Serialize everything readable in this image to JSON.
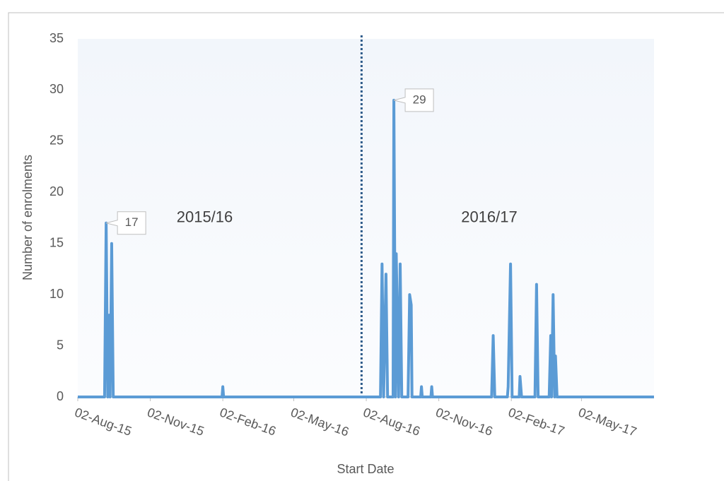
{
  "chart_data": {
    "type": "line",
    "x_label": "Start Date",
    "y_label": "Number of enrolments",
    "x": [
      "2015-08-02",
      "2015-09-05",
      "2015-09-07",
      "2015-09-09",
      "2015-09-11",
      "2015-09-12",
      "2015-09-14",
      "2015-09-16",
      "2016-02-01",
      "2016-02-02",
      "2016-02-03",
      "2016-08-20",
      "2016-08-22",
      "2016-08-24",
      "2016-08-27",
      "2016-08-29",
      "2016-08-31",
      "2016-09-05",
      "2016-09-06",
      "2016-09-08",
      "2016-09-09",
      "2016-09-12",
      "2016-09-14",
      "2016-09-16",
      "2016-09-24",
      "2016-09-26",
      "2016-09-28",
      "2016-09-29",
      "2016-10-10",
      "2016-10-11",
      "2016-10-12",
      "2016-10-23",
      "2016-10-24",
      "2016-10-25",
      "2017-01-08",
      "2017-01-10",
      "2017-01-12",
      "2017-01-28",
      "2017-01-29",
      "2017-02-01",
      "2017-02-03",
      "2017-02-12",
      "2017-02-13",
      "2017-02-15",
      "2017-03-04",
      "2017-03-06",
      "2017-03-08",
      "2017-03-22",
      "2017-03-24",
      "2017-03-25",
      "2017-03-27",
      "2017-03-29",
      "2017-03-30",
      "2017-04-01",
      "2017-04-02",
      "2017-08-02"
    ],
    "values": [
      0,
      0,
      17,
      0,
      8,
      0,
      15,
      0,
      0,
      1,
      0,
      0,
      13,
      0,
      12,
      0,
      0,
      0,
      29,
      0,
      14,
      0,
      13,
      0,
      0,
      10,
      9,
      0,
      0,
      1,
      0,
      0,
      1,
      0,
      0,
      6,
      0,
      0,
      1,
      13,
      0,
      0,
      2,
      0,
      0,
      11,
      0,
      0,
      6,
      0,
      10,
      0,
      4,
      0,
      0,
      0
    ],
    "color": "#5b9bd5",
    "xlim": [
      "2015-08-02",
      "2017-08-02"
    ],
    "xticks": [
      {
        "value": "2015-08-02",
        "label": "02-Aug-15"
      },
      {
        "value": "2015-11-02",
        "label": "02-Nov-15"
      },
      {
        "value": "2016-02-02",
        "label": "02-Feb-16"
      },
      {
        "value": "2016-05-02",
        "label": "02-May-16"
      },
      {
        "value": "2016-08-02",
        "label": "02-Aug-16"
      },
      {
        "value": "2016-11-02",
        "label": "02-Nov-16"
      },
      {
        "value": "2017-02-02",
        "label": "02-Feb-17"
      },
      {
        "value": "2017-05-02",
        "label": "02-May-17"
      }
    ],
    "ylim": [
      0,
      35
    ],
    "yticks": [
      0,
      5,
      10,
      15,
      20,
      25,
      30,
      35
    ],
    "callouts": [
      2,
      18
    ],
    "divider": "2016-07-27",
    "annotations": [
      {
        "text": "2015/16",
        "x": "2016-01-10",
        "y": 17.5
      },
      {
        "text": "2016/17",
        "x": "2017-01-05",
        "y": 17.5
      }
    ]
  }
}
